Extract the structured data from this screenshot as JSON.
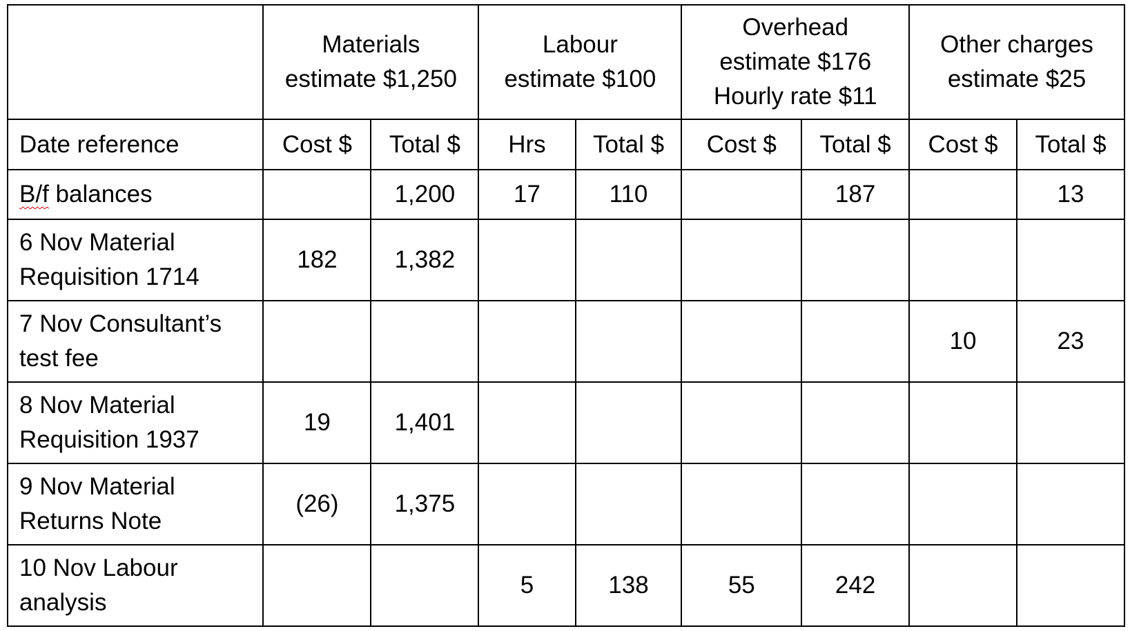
{
  "groups": {
    "materials": {
      "line1": "Materials",
      "line2": "estimate $1,250"
    },
    "labour": {
      "line1": "Labour",
      "line2": "estimate $100"
    },
    "overhead": {
      "line1": "Overhead",
      "line2": "estimate $176",
      "line3": "Hourly rate $11"
    },
    "other": {
      "line1": "Other charges",
      "line2": "estimate $25"
    }
  },
  "columns": {
    "date_reference": "Date reference",
    "materials_cost": "Cost $",
    "materials_total": "Total $",
    "labour_hrs": "Hrs",
    "labour_total": "Total $",
    "overhead_cost": "Cost $",
    "overhead_total": "Total $",
    "other_cost": "Cost $",
    "other_total": "Total $"
  },
  "rows": [
    {
      "ref_line1": "B/f",
      "ref_line2": "balances",
      "materials_cost": "",
      "materials_total": "1,200",
      "labour_hrs": "17",
      "labour_total": "110",
      "overhead_cost": "",
      "overhead_total": "187",
      "other_cost": "",
      "other_total": "13"
    },
    {
      "ref_line1": "6 Nov Material",
      "ref_line2": "Requisition 1714",
      "materials_cost": "182",
      "materials_total": "1,382",
      "labour_hrs": "",
      "labour_total": "",
      "overhead_cost": "",
      "overhead_total": "",
      "other_cost": "",
      "other_total": ""
    },
    {
      "ref_line1": "7 Nov Consultant’s",
      "ref_line2": "test fee",
      "materials_cost": "",
      "materials_total": "",
      "labour_hrs": "",
      "labour_total": "",
      "overhead_cost": "",
      "overhead_total": "",
      "other_cost": "10",
      "other_total": "23"
    },
    {
      "ref_line1": "8 Nov Material",
      "ref_line2": "Requisition 1937",
      "materials_cost": "19",
      "materials_total": "1,401",
      "labour_hrs": "",
      "labour_total": "",
      "overhead_cost": "",
      "overhead_total": "",
      "other_cost": "",
      "other_total": ""
    },
    {
      "ref_line1": "9 Nov Material",
      "ref_line2": "Returns Note",
      "materials_cost": "(26)",
      "materials_total": "1,375",
      "labour_hrs": "",
      "labour_total": "",
      "overhead_cost": "",
      "overhead_total": "",
      "other_cost": "",
      "other_total": ""
    },
    {
      "ref_line1": "10 Nov Labour",
      "ref_line2": "analysis",
      "materials_cost": "",
      "materials_total": "",
      "labour_hrs": "5",
      "labour_total": "138",
      "overhead_cost": "55",
      "overhead_total": "242",
      "other_cost": "",
      "other_total": ""
    }
  ],
  "colors": {
    "text": "#000000",
    "border": "#000000",
    "background": "#ffffff",
    "spellcheck_underline": "#d00000"
  }
}
